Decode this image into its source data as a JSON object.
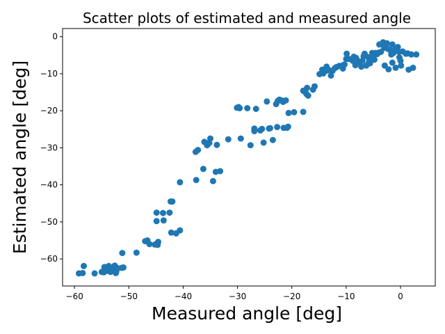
{
  "chart_data": {
    "type": "scatter",
    "title": "Scatter plots of estimated and measured angle",
    "xlabel": "Measured angle [deg]",
    "ylabel": "Estimated angle [deg]",
    "xlim": [
      -62.2,
      6.4
    ],
    "ylim": [
      -67.3,
      2.2
    ],
    "xticks": [
      -60,
      -50,
      -40,
      -30,
      -20,
      -10,
      0
    ],
    "yticks": [
      -60,
      -50,
      -40,
      -30,
      -20,
      -10,
      0
    ],
    "grid": false,
    "marker_color": "#1f77b4",
    "points": [
      [
        -59.2,
        -63.9
      ],
      [
        -58.5,
        -63.8
      ],
      [
        -58.3,
        -61.9
      ],
      [
        -56.3,
        -63.9
      ],
      [
        -55.0,
        -63.5
      ],
      [
        -54.6,
        -63.6
      ],
      [
        -54.5,
        -62.2
      ],
      [
        -54.0,
        -63.2
      ],
      [
        -53.7,
        -61.9
      ],
      [
        -53.6,
        -62.7
      ],
      [
        -53.4,
        -63.5
      ],
      [
        -52.9,
        -62.3
      ],
      [
        -52.6,
        -61.8
      ],
      [
        -52.4,
        -63.8
      ],
      [
        -52.3,
        -63.3
      ],
      [
        -52.1,
        -62.5
      ],
      [
        -51.3,
        -62.4
      ],
      [
        -51.0,
        -62.3
      ],
      [
        -51.2,
        -58.4
      ],
      [
        -48.6,
        -58.3
      ],
      [
        -47.0,
        -55.2
      ],
      [
        -46.6,
        -55.0
      ],
      [
        -46.2,
        -56.0
      ],
      [
        -45.2,
        -56.1
      ],
      [
        -44.7,
        -56.2
      ],
      [
        -44.6,
        -55.4
      ],
      [
        -44.9,
        -49.8
      ],
      [
        -44.9,
        -47.5
      ],
      [
        -43.7,
        -47.6
      ],
      [
        -43.6,
        -49.6
      ],
      [
        -42.5,
        -47.5
      ],
      [
        -42.3,
        -44.5
      ],
      [
        -42.0,
        -44.5
      ],
      [
        -42.2,
        -52.9
      ],
      [
        -41.3,
        -53.1
      ],
      [
        -40.6,
        -52.3
      ],
      [
        -40.6,
        -39.3
      ],
      [
        -37.6,
        -38.7
      ],
      [
        -37.7,
        -31.1
      ],
      [
        -37.3,
        -30.6
      ],
      [
        -36.3,
        -35.7
      ],
      [
        -36.1,
        -28.4
      ],
      [
        -35.6,
        -29.3
      ],
      [
        -35.3,
        -28.7
      ],
      [
        -35.2,
        -28.7
      ],
      [
        -35.0,
        -27.5
      ],
      [
        -34.5,
        -39.0
      ],
      [
        -34.0,
        -36.5
      ],
      [
        -33.8,
        -29.2
      ],
      [
        -33.2,
        -36.3
      ],
      [
        -31.7,
        -27.7
      ],
      [
        -30.1,
        -19.2
      ],
      [
        -29.8,
        -19.0
      ],
      [
        -29.6,
        -19.3
      ],
      [
        -29.4,
        -27.5
      ],
      [
        -28.2,
        -19.3
      ],
      [
        -27.6,
        -29.3
      ],
      [
        -26.9,
        -24.8
      ],
      [
        -26.9,
        -25.5
      ],
      [
        -26.6,
        -19.5
      ],
      [
        -25.8,
        -25.3
      ],
      [
        -25.5,
        -24.9
      ],
      [
        -25.2,
        -28.6
      ],
      [
        -24.6,
        -17.5
      ],
      [
        -24.2,
        -24.8
      ],
      [
        -24.0,
        -24.7
      ],
      [
        -23.5,
        -27.9
      ],
      [
        -22.9,
        -18.2
      ],
      [
        -22.7,
        -24.4
      ],
      [
        -22.6,
        -17.4
      ],
      [
        -22.3,
        -17.0
      ],
      [
        -21.9,
        -17.2
      ],
      [
        -21.6,
        -17.6
      ],
      [
        -21.5,
        -24.6
      ],
      [
        -21.1,
        -17.2
      ],
      [
        -20.9,
        -24.6
      ],
      [
        -20.7,
        -24.3
      ],
      [
        -20.6,
        -20.6
      ],
      [
        -19.6,
        -20.4
      ],
      [
        -17.9,
        -20.3
      ],
      [
        -17.9,
        -14.6
      ],
      [
        -17.5,
        -15.0
      ],
      [
        -17.3,
        -15.5
      ],
      [
        -17.2,
        -13.8
      ],
      [
        -17.0,
        -15.9
      ],
      [
        -16.1,
        -14.3
      ],
      [
        -15.8,
        -13.4
      ],
      [
        -14.9,
        -10.1
      ],
      [
        -14.4,
        -8.9
      ],
      [
        -14.2,
        -9.9
      ],
      [
        -13.7,
        -9.2
      ],
      [
        -13.6,
        -8.1
      ],
      [
        -13.2,
        -9.0
      ],
      [
        -12.8,
        -10.5
      ],
      [
        -12.5,
        -9.2
      ],
      [
        -12.1,
        -8.5
      ],
      [
        -11.8,
        -8.2
      ],
      [
        -11.3,
        -7.9
      ],
      [
        -10.6,
        -7.7
      ],
      [
        -10.6,
        -8.6
      ],
      [
        -10.3,
        -7.5
      ],
      [
        -10.0,
        -6.0
      ],
      [
        -9.9,
        -4.6
      ],
      [
        -9.5,
        -6.0
      ],
      [
        -9.0,
        -6.2
      ],
      [
        -8.8,
        -6.5
      ],
      [
        -8.6,
        -5.4
      ],
      [
        -8.3,
        -7.7
      ],
      [
        -8.2,
        -5.7
      ],
      [
        -8.0,
        -6.3
      ],
      [
        -7.6,
        -6.9
      ],
      [
        -7.2,
        -8.1
      ],
      [
        -7.0,
        -6.5
      ],
      [
        -6.8,
        -5.3
      ],
      [
        -6.6,
        -4.6
      ],
      [
        -6.3,
        -7.8
      ],
      [
        -6.0,
        -5.5
      ],
      [
        -5.8,
        -6.8
      ],
      [
        -5.6,
        -7.2
      ],
      [
        -5.2,
        -4.4
      ],
      [
        -5.0,
        -5.7
      ],
      [
        -4.8,
        -6.2
      ],
      [
        -4.6,
        -4.4
      ],
      [
        -4.3,
        -4.7
      ],
      [
        -4.0,
        -4.3
      ],
      [
        -3.9,
        -2.1
      ],
      [
        -3.6,
        -4.1
      ],
      [
        -3.2,
        -1.5
      ],
      [
        -3.0,
        -3.0
      ],
      [
        -2.9,
        -7.8
      ],
      [
        -2.7,
        -2.6
      ],
      [
        -2.5,
        -1.8
      ],
      [
        -2.3,
        -3.3
      ],
      [
        -2.2,
        -8.8
      ],
      [
        -1.9,
        -3.6
      ],
      [
        -1.7,
        -4.8
      ],
      [
        -1.5,
        -2.1
      ],
      [
        -1.5,
        -7.0
      ],
      [
        -1.3,
        -4.4
      ],
      [
        -1.0,
        -3.5
      ],
      [
        -0.9,
        -8.4
      ],
      [
        -0.7,
        -3.4
      ],
      [
        -0.5,
        -2.8
      ],
      [
        -0.3,
        -4.1
      ],
      [
        -0.2,
        -5.6
      ],
      [
        0.0,
        -6.5
      ],
      [
        0.1,
        -7.8
      ],
      [
        0.4,
        -4.0
      ],
      [
        1.0,
        -4.6
      ],
      [
        1.3,
        -4.5
      ],
      [
        1.5,
        -8.9
      ],
      [
        2.0,
        -4.8
      ],
      [
        2.3,
        -8.4
      ],
      [
        2.9,
        -4.8
      ]
    ]
  }
}
